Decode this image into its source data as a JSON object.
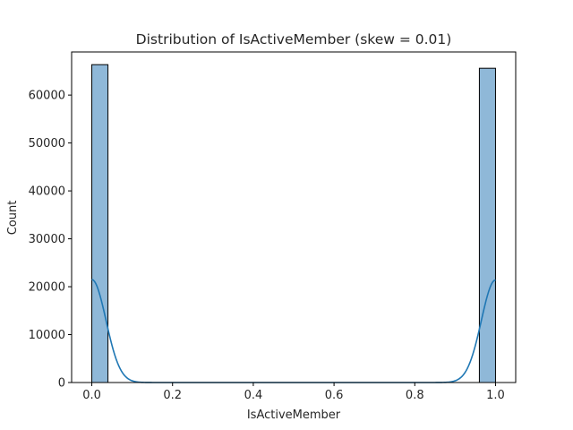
{
  "chart_data": {
    "type": "bar",
    "title": "Distribution of IsActiveMember (skew = 0.01)",
    "xlabel": "IsActiveMember",
    "ylabel": "Count",
    "xlim": [
      -0.05,
      1.05
    ],
    "ylim": [
      0,
      69000
    ],
    "x_ticks": [
      "0.0",
      "0.2",
      "0.4",
      "0.6",
      "0.8",
      "1.0"
    ],
    "y_ticks": [
      "0",
      "10000",
      "20000",
      "30000",
      "40000",
      "50000",
      "60000"
    ],
    "bins": [
      {
        "x0": 0.0,
        "x1": 0.04,
        "count": 66350
      },
      {
        "x0": 0.96,
        "x1": 1.0,
        "count": 65600
      }
    ],
    "kde": {
      "peak_left": 21500,
      "peak_right": 21400,
      "bandwidth": 0.035
    },
    "grid": false,
    "legend": "none",
    "colors": {
      "bar_fill": "#8fb8d8",
      "bar_edge": "#000000",
      "kde_line": "#1f77b4",
      "axis": "#000000",
      "text": "#262626"
    }
  }
}
